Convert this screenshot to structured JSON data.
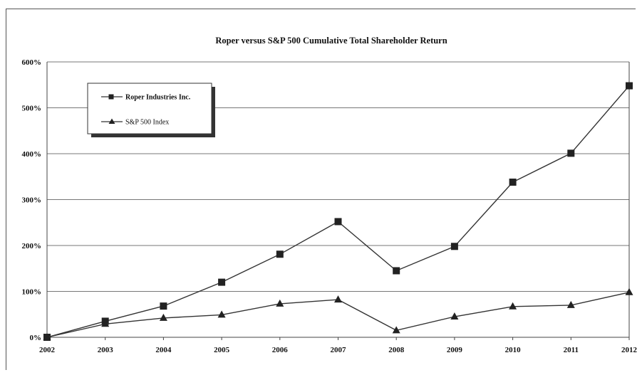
{
  "chart_data": {
    "type": "line",
    "title": "Roper versus S&P 500 Cumulative Total Shareholder Return",
    "xlabel": "",
    "ylabel": "",
    "x": [
      "2002",
      "2003",
      "2004",
      "2005",
      "2006",
      "2007",
      "2008",
      "2009",
      "2010",
      "2011",
      "2012"
    ],
    "ylim": [
      0,
      600
    ],
    "yticks": [
      "0%",
      "100%",
      "200%",
      "300%",
      "400%",
      "500%",
      "600%"
    ],
    "grid": true,
    "legend_position": "top-left",
    "series": [
      {
        "name": "Roper Industries Inc.",
        "marker": "square",
        "values": [
          0,
          35,
          68,
          120,
          181,
          252,
          145,
          198,
          338,
          401,
          548
        ]
      },
      {
        "name": "S&P 500 Index",
        "marker": "triangle",
        "values": [
          0,
          29,
          42,
          49,
          73,
          82,
          15,
          45,
          67,
          70,
          98
        ]
      }
    ],
    "colors": {
      "line": "#333333",
      "grid": "#777777",
      "axis": "#444444"
    }
  }
}
